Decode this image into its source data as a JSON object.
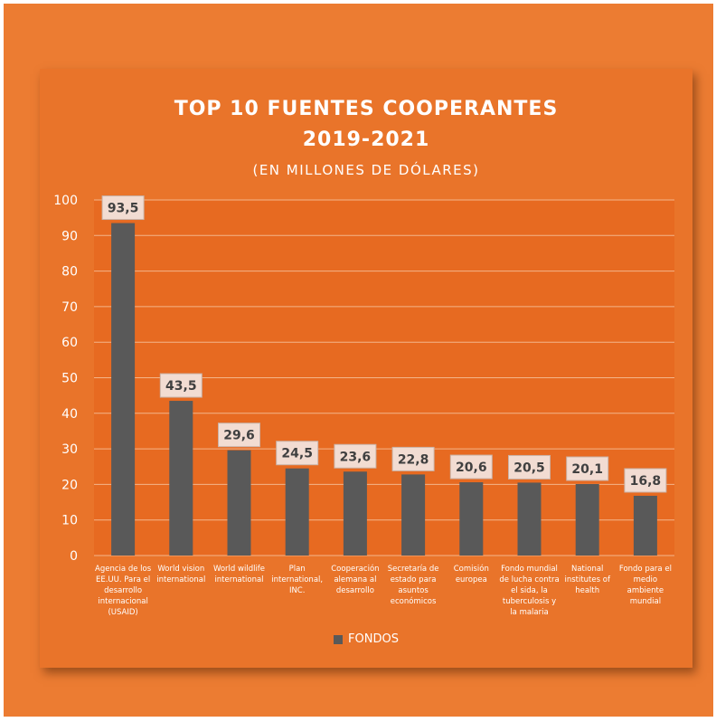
{
  "chart_data": {
    "type": "bar",
    "title": "TOP 10 FUENTES COOPERANTES",
    "title_line2": "2019-2021",
    "subtitle": "(EN MILLONES DE DÓLARES)",
    "categories": [
      "Agencia de los EE.UU. Para el desarrollo internacional (USAID)",
      "World vision international",
      "World wildlife international",
      "Plan international, INC.",
      "Cooperación alemana al desarrollo",
      "Secretaría de estado para asuntos económicos",
      "Comisión europea",
      "Fondo mundial de lucha contra el sida, la tuberculosis y la malaria",
      "National institutes of health",
      "Fondo para el medio ambiente mundial"
    ],
    "category_lines": [
      [
        "Agencia de los",
        "EE.UU. Para el",
        "desarrollo",
        "internacional",
        "(USAID)"
      ],
      [
        "World vision",
        "international"
      ],
      [
        "World wildlife",
        "international"
      ],
      [
        "Plan",
        "international,",
        "INC."
      ],
      [
        "Cooperación",
        "alemana al",
        "desarrollo"
      ],
      [
        "Secretaría de",
        "estado para",
        "asuntos",
        "económicos"
      ],
      [
        "Comisión",
        "europea"
      ],
      [
        "Fondo mundial",
        "de lucha contra",
        "el sida, la",
        "tuberculosis y",
        "la malaria"
      ],
      [
        "National",
        "institutes of",
        "health"
      ],
      [
        "Fondo para el",
        "medio",
        "ambiente",
        "mundial"
      ]
    ],
    "series": [
      {
        "name": "FONDOS",
        "values": [
          93.5,
          43.5,
          29.6,
          24.5,
          23.6,
          22.8,
          20.6,
          20.5,
          20.1,
          16.8
        ],
        "labels": [
          "93,5",
          "43,5",
          "29,6",
          "24,5",
          "23,6",
          "22,8",
          "20,6",
          "20,5",
          "20,1",
          "16,8"
        ]
      }
    ],
    "ylim": [
      0,
      100
    ],
    "yticks": [
      0,
      10,
      20,
      30,
      40,
      50,
      60,
      70,
      80,
      90,
      100
    ],
    "grid": true,
    "legend_position": "bottom",
    "colors": {
      "bar": "#595959",
      "background": "#EC7C32",
      "plot_area": "#E9742A",
      "label_box": "#F2DCD2",
      "text": "#ffffff"
    }
  }
}
